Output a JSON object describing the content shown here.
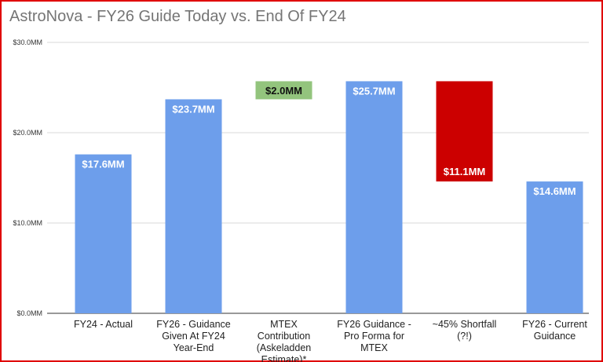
{
  "chart_data": {
    "type": "bar",
    "subtype": "waterfall",
    "title": "AstroNova - FY26 Guide Today vs. End Of FY24",
    "xlabel": "",
    "ylabel": "",
    "ylim": [
      0,
      30
    ],
    "yticks": [
      0,
      10,
      20,
      30
    ],
    "ytick_labels": [
      "$0.0MM",
      "$10.0MM",
      "$20.0MM",
      "$30.0MM"
    ],
    "grid": true,
    "categories": [
      [
        "FY24 - Actual"
      ],
      [
        "FY26 - Guidance",
        "Given At FY24",
        "Year-End"
      ],
      [
        "MTEX",
        "Contribution",
        "(Askeladden",
        "Estimate)*"
      ],
      [
        "FY26 Guidance -",
        "Pro Forma for",
        "MTEX"
      ],
      [
        "~45% Shortfall",
        "(?!)"
      ],
      [
        "FY26 - Current",
        "Guidance"
      ]
    ],
    "bars": [
      {
        "start": 0,
        "end": 17.6,
        "label": "$17.6MM",
        "color": "#6d9eeb",
        "kind": "total"
      },
      {
        "start": 0,
        "end": 23.7,
        "label": "$23.7MM",
        "color": "#6d9eeb",
        "kind": "total"
      },
      {
        "start": 23.7,
        "end": 25.7,
        "label": "$2.0MM",
        "color": "#93c47d",
        "kind": "increase"
      },
      {
        "start": 0,
        "end": 25.7,
        "label": "$25.7MM",
        "color": "#6d9eeb",
        "kind": "total"
      },
      {
        "start": 25.7,
        "end": 14.6,
        "label": "$11.1MM",
        "color": "#cc0000",
        "kind": "decrease"
      },
      {
        "start": 0,
        "end": 14.6,
        "label": "$14.6MM",
        "color": "#6d9eeb",
        "kind": "total"
      }
    ],
    "legend": "none"
  }
}
